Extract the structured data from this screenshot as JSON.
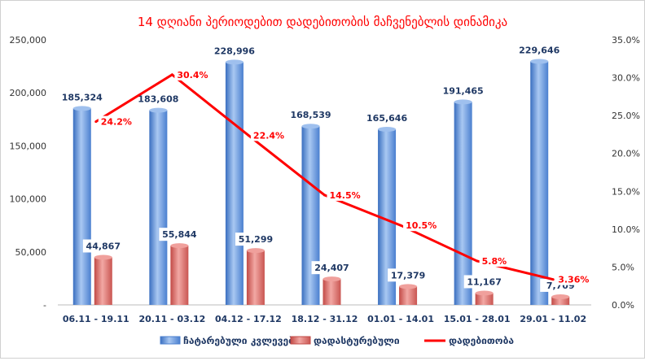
{
  "chart_data": {
    "type": "bar",
    "title": "14 დღიანი პერიოდებით დადებითობის მაჩვენებლის დინამიკა",
    "categories": [
      "06.11 - 19.11",
      "20.11 - 03.12",
      "04.12 - 17.12",
      "18.12 - 31.12",
      "01.01 - 14.01",
      "15.01 - 28.01",
      "29.01 - 11.02"
    ],
    "series": [
      {
        "name": "ჩატარებული კვლევები",
        "type": "bar",
        "axis": "left",
        "color": "#5b8fd6",
        "values": [
          185324,
          183608,
          228996,
          168539,
          165646,
          191465,
          229646
        ],
        "labels": [
          "185,324",
          "183,608",
          "228,996",
          "168,539",
          "165,646",
          "191,465",
          "229,646"
        ]
      },
      {
        "name": "დადასტურებული",
        "type": "bar",
        "axis": "left",
        "color": "#d96a66",
        "values": [
          44867,
          55844,
          51299,
          24407,
          17379,
          11167,
          7709
        ],
        "labels": [
          "44,867",
          "55,844",
          "51,299",
          "24,407",
          "17,379",
          "11,167",
          "7,709"
        ]
      },
      {
        "name": "დადებითობა",
        "type": "line",
        "axis": "right",
        "color": "#ff0000",
        "values": [
          24.2,
          30.4,
          22.4,
          14.5,
          10.5,
          5.8,
          3.36
        ],
        "labels": [
          "24.2%",
          "30.4%",
          "22.4%",
          "14.5%",
          "10.5%",
          "5.8%",
          "3.36%"
        ]
      }
    ],
    "y_left": {
      "range": [
        0,
        250000
      ],
      "ticks": [
        "-",
        "50,000",
        "100,000",
        "150,000",
        "200,000",
        "250,000"
      ]
    },
    "y_right": {
      "range": [
        0,
        35
      ],
      "ticks": [
        "0.0%",
        "5.0%",
        "10.0%",
        "15.0%",
        "20.0%",
        "25.0%",
        "30.0%",
        "35.0%"
      ]
    },
    "legend": "bottom",
    "grid": false
  }
}
